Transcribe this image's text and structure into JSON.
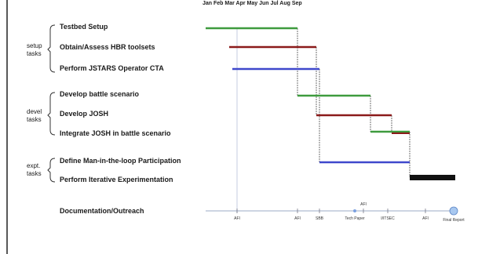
{
  "timeline": {
    "month_header": "Jan Feb Mar Apr May Jun Jul Aug Sep",
    "groups": [
      {
        "label_lines": [
          "setup",
          "tasks"
        ]
      },
      {
        "label_lines": [
          "devel",
          "tasks"
        ]
      },
      {
        "label_lines": [
          "expt.",
          "tasks"
        ]
      }
    ],
    "tasks": [
      {
        "label": "Testbed Setup",
        "color": "#3e9b3e"
      },
      {
        "label": "Obtain/Assess HBR toolsets",
        "color": "#8b1a1a"
      },
      {
        "label": "Perform JSTARS Operator CTA",
        "color": "#3f48cc"
      },
      {
        "label": "Develop battle scenario",
        "color": "#3e9b3e"
      },
      {
        "label": "Develop JOSH",
        "color": "#8b1a1a"
      },
      {
        "label": "Integrate JOSH in battle scenario",
        "color": "#3e9b3e"
      },
      {
        "label": "Define Man-in-the-loop Participation",
        "color": "#3f48cc"
      },
      {
        "label": "Perform Iterative Experimentation",
        "color": "#111111"
      }
    ],
    "documentation": {
      "label": "Documentation/Outreach",
      "milestones": [
        {
          "label": "AFI"
        },
        {
          "label": "AFI"
        },
        {
          "label": "SBB"
        },
        {
          "label": "Tech Paper"
        },
        {
          "label": "AFI"
        },
        {
          "label": "I/ITSEC"
        },
        {
          "label": "AFI"
        },
        {
          "label": "Final Report"
        }
      ]
    }
  }
}
